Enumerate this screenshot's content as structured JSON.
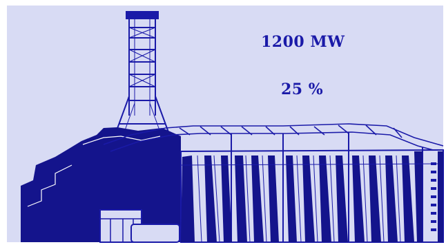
{
  "readouts": {
    "power": "1200 MW",
    "percent": "25 %"
  },
  "illustration": {
    "subject": "power-plant-icon"
  },
  "colors": {
    "background": "#d8dbf4",
    "ink": "#1a1aa8",
    "ink_dark": "#14148c",
    "text": "#1a1aa8"
  }
}
